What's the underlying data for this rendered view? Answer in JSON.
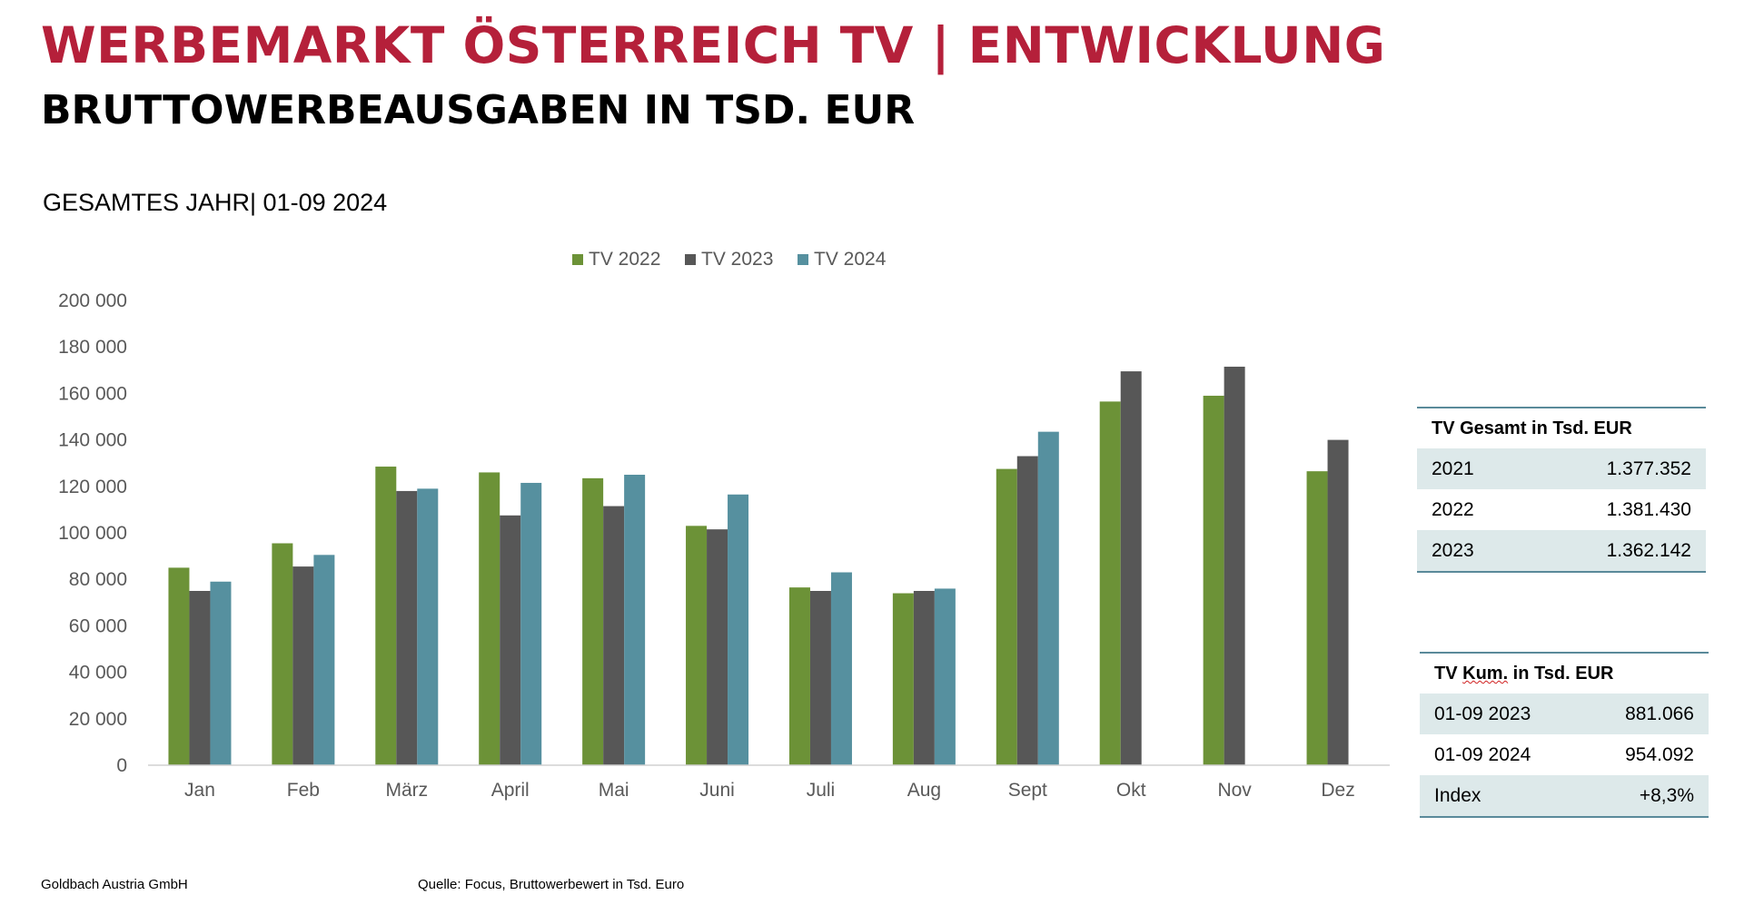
{
  "header": {
    "title": "WERBEMARKT ÖSTERREICH TV | ENTWICKLUNG",
    "subtitle": "BRUTTOWERBEAUSGABEN IN TSD. EUR",
    "period": "GESAMTES JAHR| 01-09 2024"
  },
  "chart_data": {
    "type": "bar",
    "categories": [
      "Jan",
      "Feb",
      "März",
      "April",
      "Mai",
      "Juni",
      "Juli",
      "Aug",
      "Sept",
      "Okt",
      "Nov",
      "Dez"
    ],
    "series": [
      {
        "name": "TV 2022",
        "color": "#6c9237",
        "values": [
          85000,
          95500,
          128500,
          126000,
          123500,
          103000,
          76500,
          74000,
          127500,
          156500,
          159000,
          126500
        ]
      },
      {
        "name": "TV 2023",
        "color": "#575757",
        "values": [
          75000,
          85500,
          118000,
          107500,
          111500,
          101500,
          75000,
          75000,
          133000,
          169500,
          171500,
          140000
        ]
      },
      {
        "name": "TV 2024",
        "color": "#56909f",
        "values": [
          79000,
          90500,
          119000,
          121500,
          125000,
          116500,
          83000,
          76000,
          143500,
          null,
          null,
          null
        ]
      }
    ],
    "yticks": [
      "0",
      "20 000",
      "40 000",
      "60 000",
      "80 000",
      "100 000",
      "120 000",
      "140 000",
      "160 000",
      "180 000",
      "200 000"
    ],
    "ylim": [
      0,
      200000
    ],
    "legend_position": "top",
    "grid": false
  },
  "table_total": {
    "header": "TV Gesamt in Tsd. EUR",
    "rows": [
      {
        "label": "2021",
        "value": "1.377.352"
      },
      {
        "label": "2022",
        "value": "1.381.430"
      },
      {
        "label": "2023",
        "value": "1.362.142"
      }
    ]
  },
  "table_kum": {
    "header_pre": "TV ",
    "header_kum": "Kum.",
    "header_post": " in Tsd. EUR",
    "rows": [
      {
        "label": "01-09 2023",
        "value": "881.066"
      },
      {
        "label": "01-09 2024",
        "value": "954.092"
      },
      {
        "label": "Index",
        "value": "+8,3%"
      }
    ]
  },
  "footer": {
    "company": "Goldbach Austria GmbH",
    "source": "Quelle: Focus, Bruttowerbewert in Tsd. Euro"
  }
}
